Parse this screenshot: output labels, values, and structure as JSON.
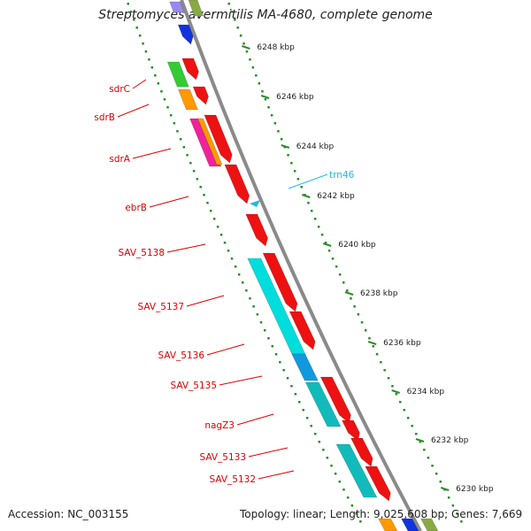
{
  "title": "Streptomyces avermitilis MA-4680, complete genome",
  "footer": {
    "accession": "Accession: NC_003155",
    "stats": "Topology: linear; Length: 9,025,608 bp; Genes: 7,669"
  },
  "colors": {
    "backbone": "#8a8a8a",
    "tick_dots": "#2e8b2e",
    "gene_label": "#dd0000",
    "trna_label": "#22bbdd",
    "forward_genes": "#ee1111",
    "cyan_genes": "#00dddd",
    "teal_genes": "#11bbbb"
  },
  "scale": {
    "unit": "kbp",
    "ticks": [
      "6248 kbp",
      "6246 kbp",
      "6244 kbp",
      "6242 kbp",
      "6240 kbp",
      "6238 kbp",
      "6236 kbp",
      "6234 kbp",
      "6232 kbp",
      "6230 kbp"
    ]
  },
  "gene_labels": [
    "sdrC",
    "sdrB",
    "sdrA",
    "ebrB",
    "SAV_5138",
    "SAV_5137",
    "SAV_5136",
    "SAV_5135",
    "nagZ3",
    "SAV_5133",
    "SAV_5132"
  ],
  "trna_labels": [
    "trn46"
  ]
}
